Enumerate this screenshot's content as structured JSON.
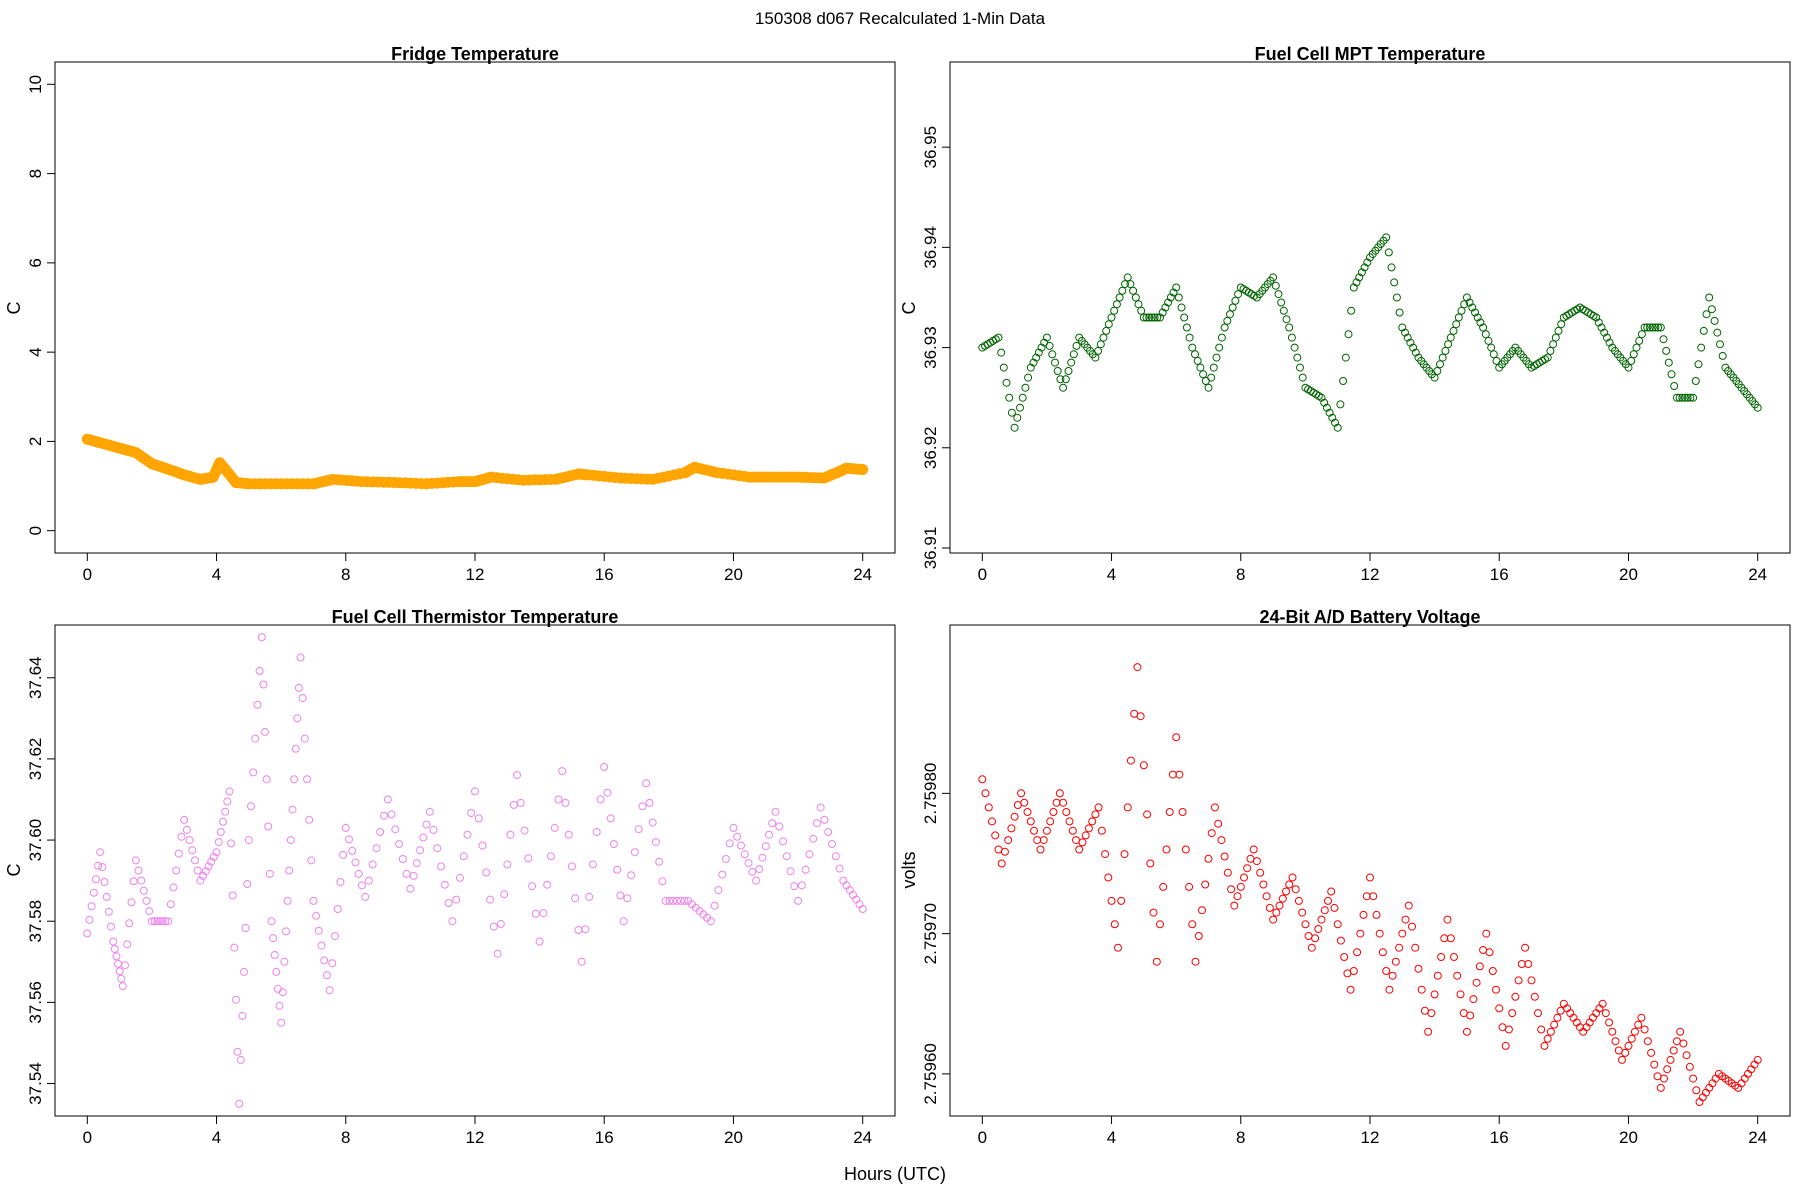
{
  "figure": {
    "title": "150308   d067   Recalculated 1-Min Data",
    "xlabel": "Hours (UTC)"
  },
  "chart_data": [
    {
      "type": "scatter",
      "title": "Fridge Temperature",
      "ylabel": "C",
      "xlim": [
        -1,
        25
      ],
      "ylim": [
        -0.5,
        10.5
      ],
      "xticks": [
        0,
        4,
        8,
        12,
        16,
        20,
        24
      ],
      "yticks": [
        0,
        2,
        4,
        6,
        8,
        10
      ],
      "ytick_labels": [
        "0",
        "2",
        "4",
        "6",
        "8",
        "10"
      ],
      "color": "#FFA500",
      "marker": "filled",
      "x": [
        0,
        0.5,
        1,
        1.5,
        2,
        2.5,
        3,
        3.5,
        3.9,
        4.1,
        4.3,
        4.6,
        5,
        6,
        7,
        7.6,
        8.5,
        9.5,
        10.5,
        11.5,
        12,
        12.5,
        13.5,
        14.5,
        15.2,
        15.5,
        16.5,
        17.5,
        18.5,
        18.8,
        19.5,
        20.5,
        21.2,
        22,
        22.8,
        23.2,
        23.5,
        24
      ],
      "y": [
        2.05,
        1.95,
        1.85,
        1.75,
        1.5,
        1.38,
        1.25,
        1.15,
        1.2,
        1.52,
        1.35,
        1.08,
        1.05,
        1.05,
        1.05,
        1.15,
        1.1,
        1.08,
        1.05,
        1.1,
        1.1,
        1.2,
        1.13,
        1.15,
        1.27,
        1.25,
        1.18,
        1.15,
        1.3,
        1.42,
        1.3,
        1.2,
        1.2,
        1.2,
        1.18,
        1.3,
        1.4,
        1.37
      ],
      "series": []
    },
    {
      "type": "scatter",
      "title": "Fuel Cell MPT Temperature",
      "ylabel": "C",
      "xlim": [
        -1,
        25
      ],
      "ylim": [
        36.9095,
        36.9585
      ],
      "xticks": [
        0,
        4,
        8,
        12,
        16,
        20,
        24
      ],
      "yticks": [
        36.91,
        36.92,
        36.93,
        36.94,
        36.95
      ],
      "ytick_labels": [
        "36.91",
        "36.92",
        "36.93",
        "36.94",
        "36.95"
      ],
      "color": "#006400",
      "marker": "open",
      "x": [
        0,
        0.5,
        1,
        1.5,
        2,
        2.5,
        3,
        3.5,
        4,
        4.5,
        5,
        5.5,
        6,
        6.5,
        7,
        7.5,
        8,
        8.5,
        9,
        9.5,
        10,
        10.5,
        11,
        11.5,
        12,
        12.5,
        13,
        13.5,
        14,
        14.5,
        15,
        15.5,
        16,
        16.5,
        17,
        17.5,
        18,
        18.5,
        19,
        19.5,
        20,
        20.5,
        21,
        21.5,
        22,
        22.5,
        23,
        23.5,
        24
      ],
      "y": [
        36.93,
        36.931,
        36.922,
        36.928,
        36.931,
        36.926,
        36.931,
        36.929,
        36.933,
        36.937,
        36.933,
        36.933,
        36.936,
        36.93,
        36.926,
        36.932,
        36.936,
        36.935,
        36.937,
        36.932,
        36.926,
        36.925,
        36.922,
        36.936,
        36.939,
        36.941,
        36.932,
        36.929,
        36.927,
        36.931,
        36.935,
        36.932,
        36.928,
        36.93,
        36.928,
        36.929,
        36.933,
        36.934,
        36.933,
        36.93,
        36.928,
        36.932,
        36.932,
        36.925,
        36.925,
        36.935,
        36.928,
        36.926,
        36.924
      ],
      "series": []
    },
    {
      "type": "scatter",
      "title": "Fuel Cell Thermistor Temperature",
      "ylabel": "C",
      "xlim": [
        -1,
        25
      ],
      "ylim": [
        37.532,
        37.653
      ],
      "xticks": [
        0,
        4,
        8,
        12,
        16,
        20,
        24
      ],
      "yticks": [
        37.54,
        37.56,
        37.58,
        37.6,
        37.62,
        37.64
      ],
      "ytick_labels": [
        "37.54",
        "37.56",
        "37.58",
        "37.60",
        "37.62",
        "37.64"
      ],
      "color": "#EE82EE",
      "marker": "open",
      "x": [
        0,
        0.4,
        0.8,
        1.1,
        1.5,
        2,
        2.5,
        3,
        3.5,
        4,
        4.4,
        4.7,
        5,
        5.4,
        5.7,
        6,
        6.3,
        6.6,
        7,
        7.5,
        8,
        8.6,
        9.3,
        10,
        10.6,
        11.3,
        12,
        12.7,
        13.3,
        14,
        14.7,
        15.3,
        16,
        16.6,
        17.3,
        17.9,
        18.6,
        19.3,
        20,
        20.7,
        21.3,
        22,
        22.7,
        23.4,
        24
      ],
      "y": [
        37.577,
        37.597,
        37.575,
        37.564,
        37.595,
        37.58,
        37.58,
        37.605,
        37.59,
        37.597,
        37.612,
        37.535,
        37.6,
        37.65,
        37.58,
        37.555,
        37.6,
        37.645,
        37.585,
        37.563,
        37.603,
        37.586,
        37.61,
        37.588,
        37.607,
        37.58,
        37.612,
        37.572,
        37.616,
        37.575,
        37.617,
        37.57,
        37.618,
        37.58,
        37.614,
        37.585,
        37.585,
        37.58,
        37.603,
        37.59,
        37.607,
        37.585,
        37.608,
        37.59,
        37.583
      ],
      "series": []
    },
    {
      "type": "scatter",
      "title": "24-Bit A/D Battery Voltage",
      "ylabel": "volts",
      "xlim": [
        -1,
        25
      ],
      "ylim": [
        2.75957,
        2.75992
      ],
      "xticks": [
        0,
        4,
        8,
        12,
        16,
        20,
        24
      ],
      "yticks": [
        2.7596,
        2.7597,
        2.7598
      ],
      "ytick_labels": [
        "2.75960",
        "2.75970",
        "2.75980"
      ],
      "color": "#FF0000",
      "marker": "open",
      "x": [
        0,
        0.6,
        1.2,
        1.8,
        2.4,
        3,
        3.6,
        4.2,
        4.8,
        5.4,
        6,
        6.6,
        7.2,
        7.8,
        8.4,
        9,
        9.6,
        10.2,
        10.8,
        11.4,
        12,
        12.6,
        13.2,
        13.8,
        14.4,
        15,
        15.6,
        16.2,
        16.8,
        17.4,
        18,
        18.6,
        19.2,
        19.8,
        20.4,
        21,
        21.6,
        22.2,
        22.8,
        23.4,
        24
      ],
      "y": [
        2.75981,
        2.75975,
        2.7598,
        2.75976,
        2.7598,
        2.75976,
        2.75979,
        2.75969,
        2.75989,
        2.75968,
        2.75984,
        2.75968,
        2.75979,
        2.75972,
        2.75976,
        2.75971,
        2.75974,
        2.75969,
        2.75973,
        2.75966,
        2.75974,
        2.75966,
        2.75972,
        2.75963,
        2.75971,
        2.75963,
        2.7597,
        2.75962,
        2.75969,
        2.75962,
        2.75965,
        2.75963,
        2.75965,
        2.75961,
        2.75964,
        2.75959,
        2.75963,
        2.75958,
        2.7596,
        2.75959,
        2.75961
      ],
      "series": []
    }
  ]
}
